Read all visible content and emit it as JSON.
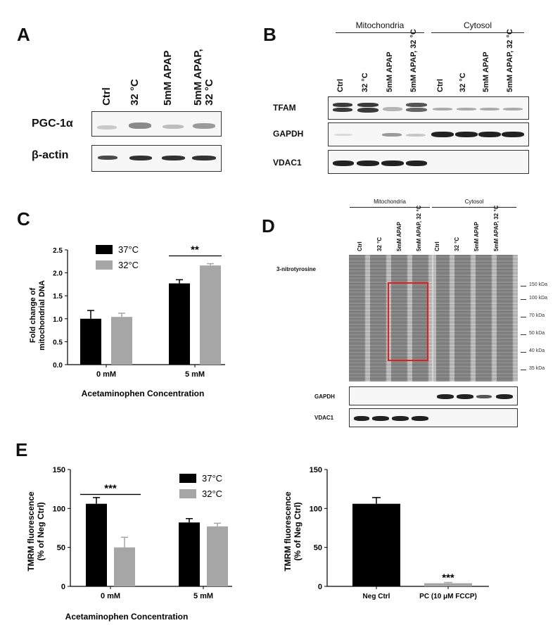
{
  "panels": {
    "A": {
      "letter": "A",
      "lanes": [
        "Ctrl",
        "32 °C",
        "5mM APAP",
        "5mM APAP,\n32 °C"
      ],
      "lane_lines": [
        [
          "Ctrl"
        ],
        [
          "32 °C"
        ],
        [
          "5mM APAP"
        ],
        [
          "5mM APAP,",
          "32 °C"
        ]
      ],
      "rows": [
        "PGC-1α",
        "β-actin"
      ]
    },
    "B": {
      "letter": "B",
      "groups": [
        "Mitochondria",
        "Cytosol"
      ],
      "lanes": [
        "Ctrl",
        "32 °C",
        "5mM APAP",
        "5mM APAP, 32 °C",
        "Ctrl",
        "32 °C",
        "5mM APAP",
        "5mM APAP, 32 °C"
      ],
      "rows": [
        "TFAM",
        "GAPDH",
        "VDAC1"
      ]
    },
    "C": {
      "letter": "C",
      "legend": [
        "37°C",
        "32°C"
      ],
      "significance": "**",
      "xlabel": "Acetaminophen Concentration",
      "ylabel": [
        "Fold change of",
        "mitochondrial DNA"
      ]
    },
    "D": {
      "letter": "D",
      "groups": [
        "Mitochondria",
        "Cytosol"
      ],
      "lanes": [
        "Ctrl",
        "32 °C",
        "5mM APAP",
        "5mM APAP, 32 °C",
        "Ctrl",
        "32 °C",
        "5mM APAP",
        "5mM APAP, 32 °C"
      ],
      "rows": [
        "3-nitrotyrosine",
        "GAPDH",
        "VDAC1"
      ],
      "markers": [
        "150 kDa",
        "100 kDa",
        "70 kDa",
        "50 kDa",
        "40 kDa",
        "35 kDa"
      ]
    },
    "E": {
      "letter": "E",
      "legend": [
        "37°C",
        "32°C"
      ],
      "significance_left": "***",
      "significance_right": "***",
      "xlabel": "Acetaminophen Concentration",
      "ylabel": [
        "TMRM fluorescence",
        "(% of Neg Ctrl)"
      ]
    }
  },
  "colors": {
    "c37": "#000000",
    "c32": "#a6a6a6",
    "highlight": "#e02020"
  },
  "chart_data": [
    {
      "id": "C",
      "type": "bar",
      "categories": [
        "0 mM",
        "5 mM"
      ],
      "series": [
        {
          "name": "37°C",
          "values": [
            1.0,
            1.77
          ],
          "errors": [
            0.18,
            0.08
          ]
        },
        {
          "name": "32°C",
          "values": [
            1.04,
            2.16
          ],
          "errors": [
            0.08,
            0.04
          ]
        }
      ],
      "xlabel": "Acetaminophen Concentration",
      "ylabel": "Fold change of mitochondrial DNA",
      "ylim": [
        0,
        2.5
      ],
      "yticks": [
        "0.0",
        "0.5",
        "1.0",
        "1.5",
        "2.0",
        "2.5"
      ],
      "legend": "top-left"
    },
    {
      "id": "E-left",
      "type": "bar",
      "categories": [
        "0 mM",
        "5 mM"
      ],
      "series": [
        {
          "name": "37°C",
          "values": [
            106,
            82
          ],
          "errors": [
            8,
            5
          ]
        },
        {
          "name": "32°C",
          "values": [
            50,
            77
          ],
          "errors": [
            13,
            4
          ]
        }
      ],
      "xlabel": "Acetaminophen Concentration",
      "ylabel": "TMRM fluorescence (% of Neg Ctrl)",
      "ylim": [
        0,
        150
      ],
      "yticks": [
        "0",
        "50",
        "100",
        "150"
      ],
      "legend": "top-right"
    },
    {
      "id": "E-right",
      "type": "bar",
      "categories": [
        "Neg Ctrl",
        "PC (10 μM FCCP)"
      ],
      "values": [
        106,
        4
      ],
      "errors": [
        8,
        1
      ],
      "bar_colors": [
        "#000000",
        "#a6a6a6"
      ],
      "xlabel": "",
      "ylabel": "TMRM fluorescence (% of Neg Ctrl)",
      "ylim": [
        0,
        150
      ],
      "yticks": [
        "0",
        "50",
        "100",
        "150"
      ]
    }
  ]
}
